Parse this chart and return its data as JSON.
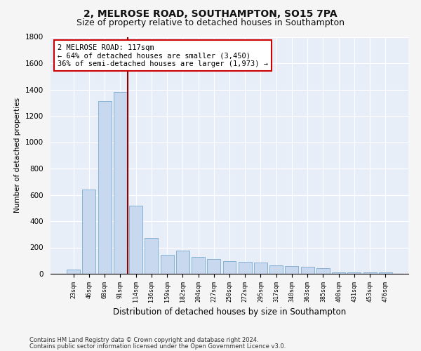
{
  "title1": "2, MELROSE ROAD, SOUTHAMPTON, SO15 7PA",
  "title2": "Size of property relative to detached houses in Southampton",
  "xlabel": "Distribution of detached houses by size in Southampton",
  "ylabel": "Number of detached properties",
  "categories": [
    "23sqm",
    "46sqm",
    "68sqm",
    "91sqm",
    "114sqm",
    "136sqm",
    "159sqm",
    "182sqm",
    "204sqm",
    "227sqm",
    "250sqm",
    "272sqm",
    "295sqm",
    "317sqm",
    "340sqm",
    "363sqm",
    "385sqm",
    "408sqm",
    "431sqm",
    "453sqm",
    "476sqm"
  ],
  "values": [
    30,
    640,
    1310,
    1380,
    520,
    270,
    145,
    175,
    130,
    110,
    95,
    90,
    85,
    65,
    60,
    55,
    45,
    10,
    10,
    10,
    10
  ],
  "bar_color": "#c8d8ee",
  "bar_edge_color": "#7aaad0",
  "vline_color": "#8b0000",
  "annotation_text": "2 MELROSE ROAD: 117sqm\n← 64% of detached houses are smaller (3,450)\n36% of semi-detached houses are larger (1,973) →",
  "annotation_box_color": "#ffffff",
  "annotation_box_edge": "#cc0000",
  "ylim": [
    0,
    1800
  ],
  "yticks": [
    0,
    200,
    400,
    600,
    800,
    1000,
    1200,
    1400,
    1600,
    1800
  ],
  "footer1": "Contains HM Land Registry data © Crown copyright and database right 2024.",
  "footer2": "Contains public sector information licensed under the Open Government Licence v3.0.",
  "bg_color": "#e8eef8",
  "grid_color": "#ffffff",
  "fig_bg_color": "#f5f5f5",
  "title1_fontsize": 10,
  "title2_fontsize": 9
}
